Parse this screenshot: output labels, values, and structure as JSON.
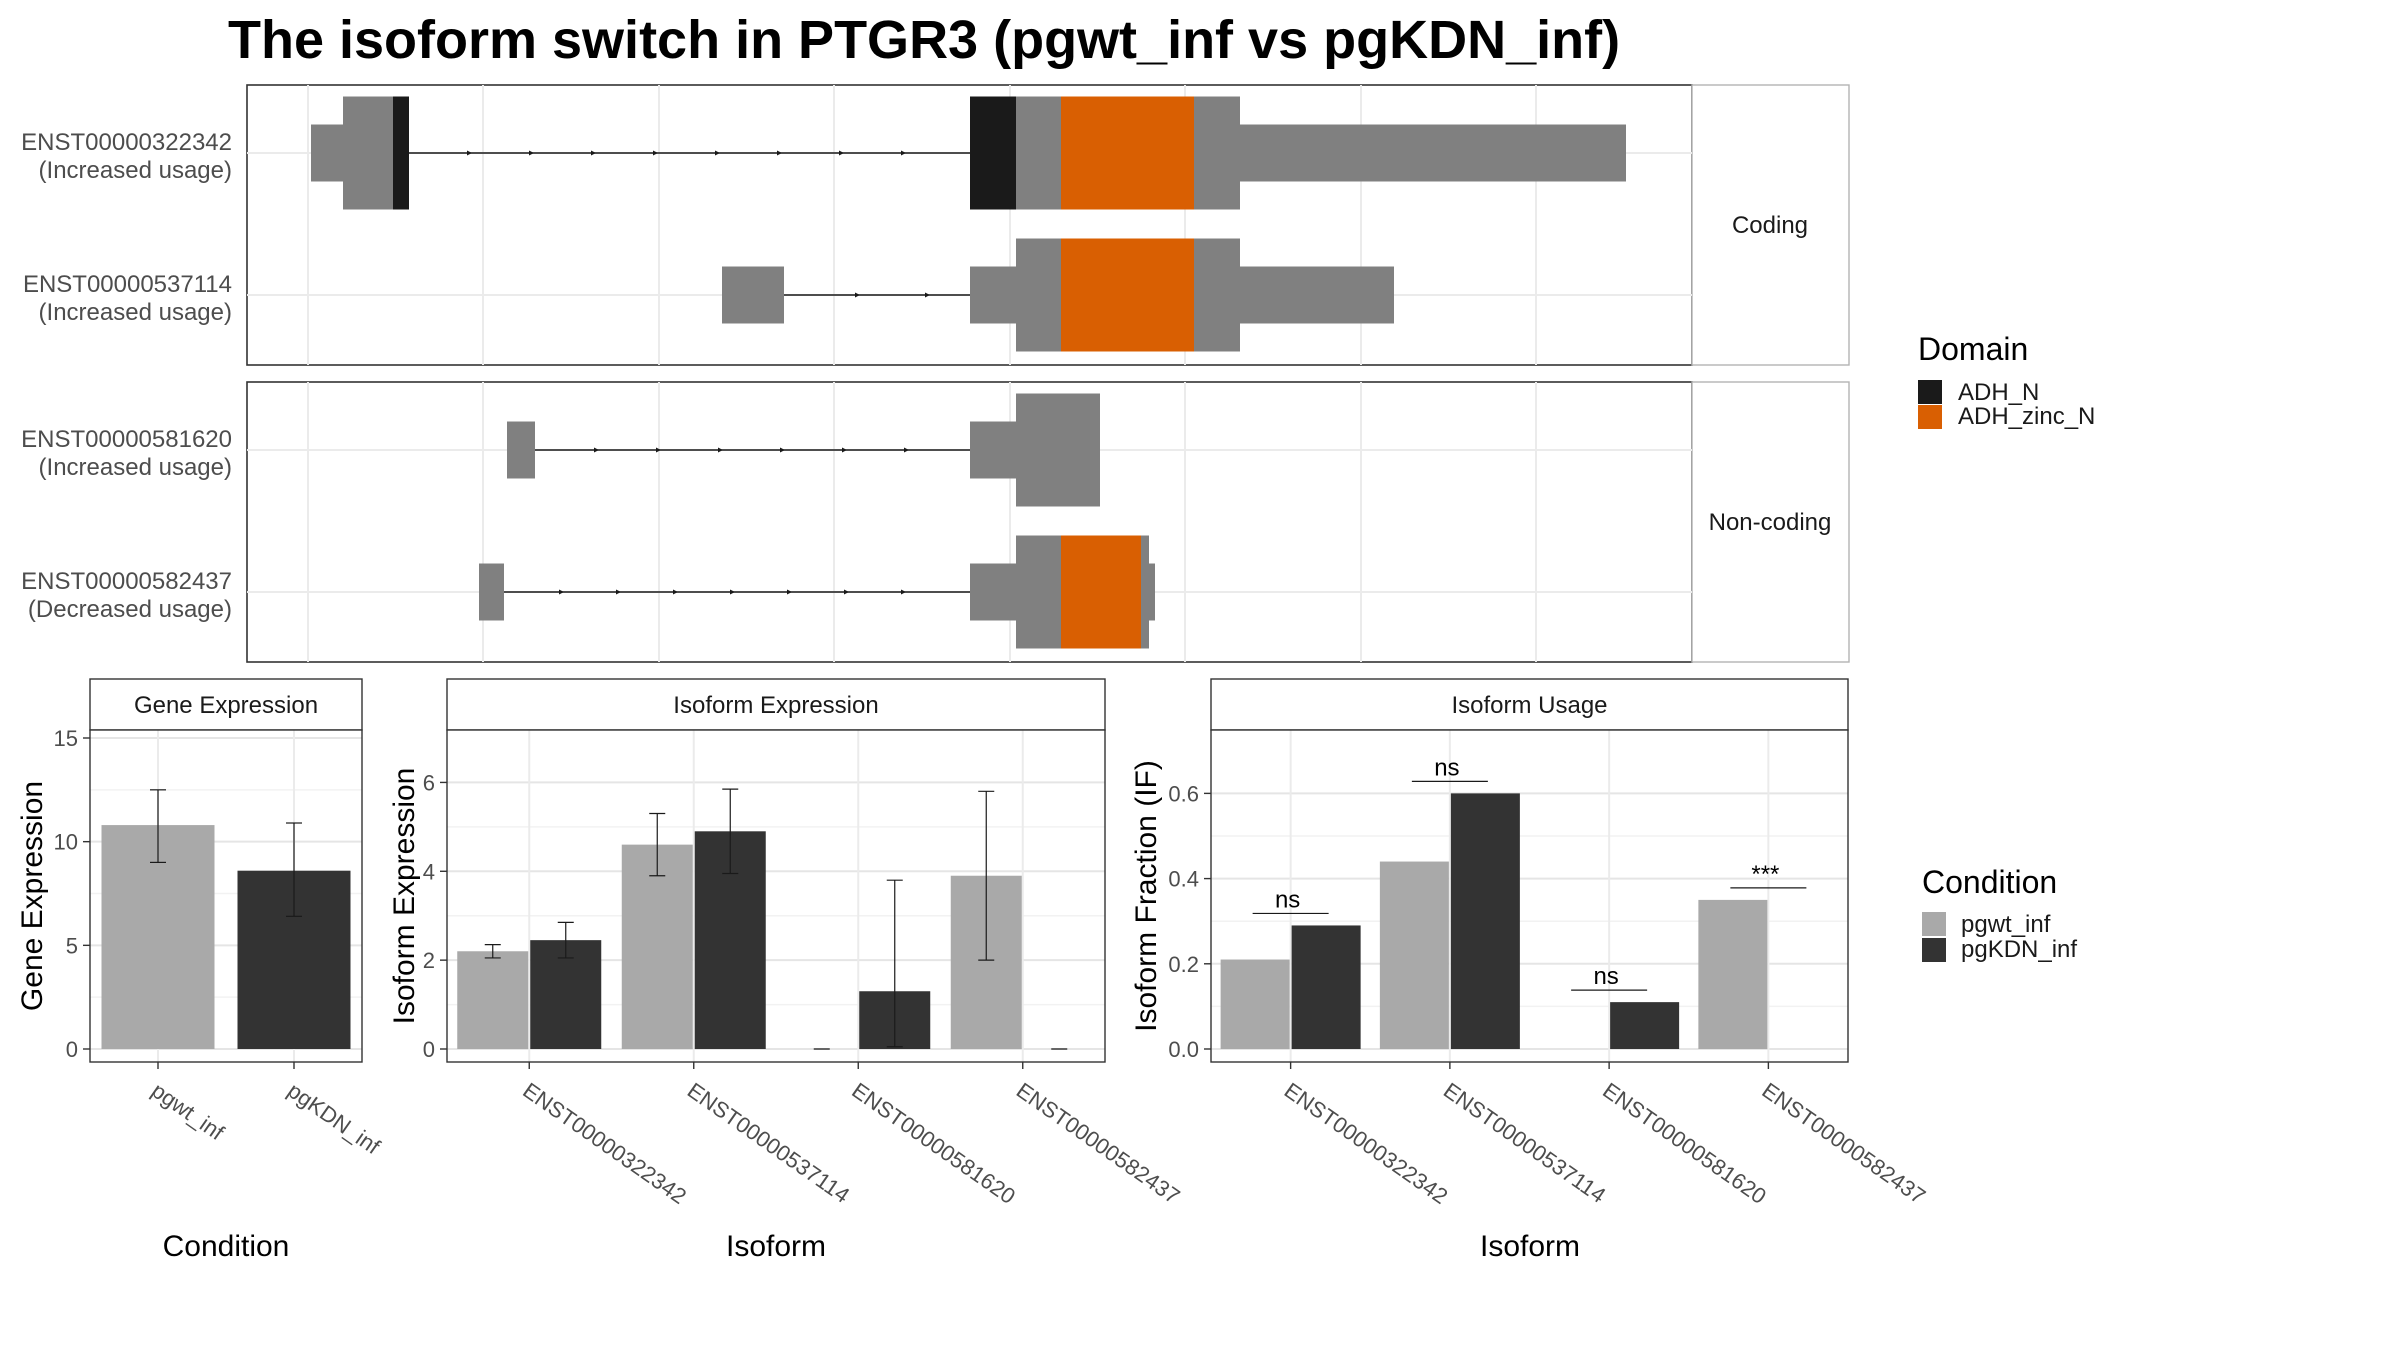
{
  "title": "The isoform switch in PTGR3 (pgwt_inf vs pgKDN_inf)",
  "colors": {
    "exon": "#808080",
    "ADH_N": "#1a1a1a",
    "ADH_zinc_N": "#d95f02",
    "pgwt_inf": "#a9a9a9",
    "pgKDN_inf": "#333333"
  },
  "structure_panels": [
    {
      "strip": "Coding",
      "transcripts": [
        {
          "id": "ENST00000322342",
          "usage": "(Increased usage)"
        },
        {
          "id": "ENST00000537114",
          "usage": "(Increased usage)"
        }
      ]
    },
    {
      "strip": "Non-coding",
      "transcripts": [
        {
          "id": "ENST00000581620",
          "usage": "(Increased usage)"
        },
        {
          "id": "ENST00000582437",
          "usage": "(Decreased usage)"
        }
      ]
    }
  ],
  "domain_legend": {
    "title": "Domain",
    "items": [
      "ADH_N",
      "ADH_zinc_N"
    ]
  },
  "condition_legend": {
    "title": "Condition",
    "items": [
      "pgwt_inf",
      "pgKDN_inf"
    ]
  },
  "chart_data": [
    {
      "type": "bar",
      "panel": "Gene Expression",
      "categories": [
        "pgwt_inf",
        "pgKDN_inf"
      ],
      "values": [
        10.8,
        8.6
      ],
      "errors": [
        [
          9.0,
          12.5
        ],
        [
          6.4,
          10.9
        ]
      ],
      "xlabel": "Condition",
      "ylabel": "Gene Expression",
      "ylim": [
        0,
        15
      ],
      "yticks": [
        0,
        5,
        10,
        15
      ]
    },
    {
      "type": "bar",
      "panel": "Isoform Expression",
      "categories": [
        "ENST00000322342",
        "ENST00000537114",
        "ENST00000581620",
        "ENST00000582437"
      ],
      "series": [
        {
          "name": "pgwt_inf",
          "values": [
            2.2,
            4.6,
            0,
            3.9
          ],
          "errors": [
            [
              2.05,
              2.35
            ],
            [
              3.9,
              5.3
            ],
            [
              0,
              0
            ],
            [
              2.0,
              5.8
            ]
          ]
        },
        {
          "name": "pgKDN_inf",
          "values": [
            2.45,
            4.9,
            1.3,
            0
          ],
          "errors": [
            [
              2.05,
              2.85
            ],
            [
              3.95,
              5.85
            ],
            [
              0.05,
              3.8
            ],
            [
              0,
              0
            ]
          ]
        }
      ],
      "xlabel": "Isoform",
      "ylabel": "Isoform Expression",
      "ylim": [
        0,
        7
      ],
      "yticks": [
        0,
        2,
        4,
        6
      ]
    },
    {
      "type": "bar",
      "panel": "Isoform Usage",
      "categories": [
        "ENST00000322342",
        "ENST00000537114",
        "ENST00000581620",
        "ENST00000582437"
      ],
      "series": [
        {
          "name": "pgwt_inf",
          "values": [
            0.21,
            0.44,
            0,
            0.35
          ]
        },
        {
          "name": "pgKDN_inf",
          "values": [
            0.29,
            0.6,
            0.11,
            0
          ]
        }
      ],
      "significance": [
        "ns",
        "ns",
        "ns",
        "***"
      ],
      "xlabel": "Isoform",
      "ylabel": "Isoform Fraction (IF)",
      "ylim": [
        0,
        0.73
      ],
      "yticks": [
        0.0,
        0.2,
        0.4,
        0.6
      ]
    }
  ]
}
